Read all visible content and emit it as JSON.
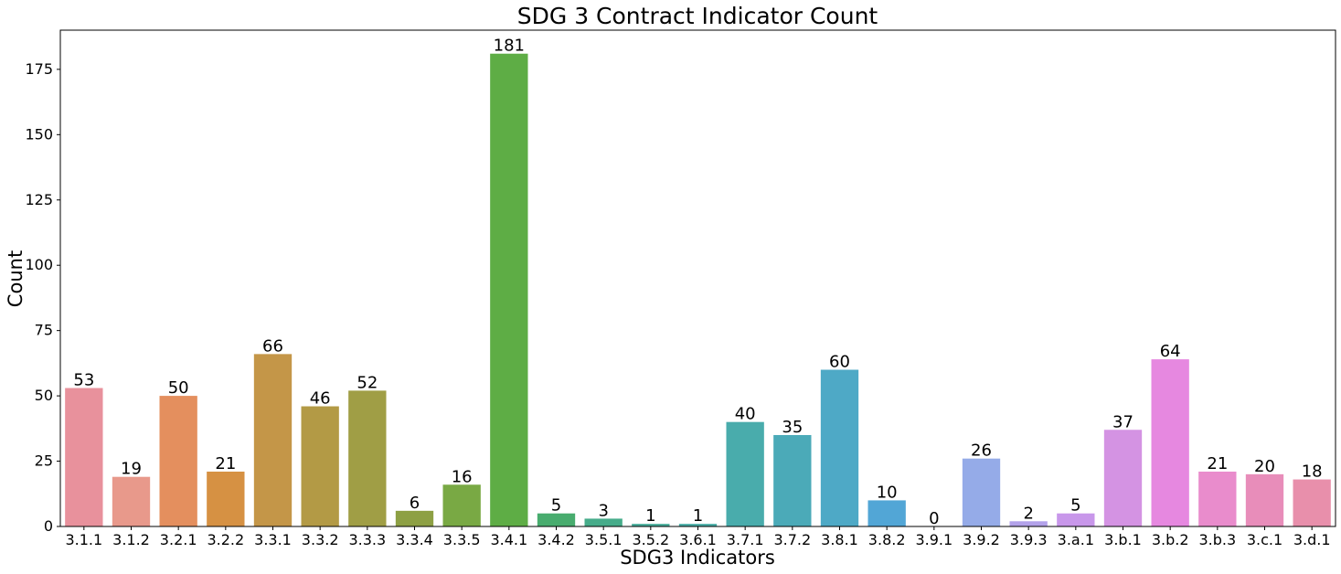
{
  "chart_data": {
    "type": "bar",
    "title": "SDG 3 Contract Indicator Count",
    "xlabel": "SDG3 Indicators",
    "ylabel": "Count",
    "ylim": [
      0,
      190
    ],
    "yticks": [
      0,
      25,
      50,
      75,
      100,
      125,
      150,
      175
    ],
    "grid": false,
    "categories": [
      "3.1.1",
      "3.1.2",
      "3.2.1",
      "3.2.2",
      "3.3.1",
      "3.3.2",
      "3.3.3",
      "3.3.4",
      "3.3.5",
      "3.4.1",
      "3.4.2",
      "3.5.1",
      "3.5.2",
      "3.6.1",
      "3.7.1",
      "3.7.2",
      "3.8.1",
      "3.8.2",
      "3.9.1",
      "3.9.2",
      "3.9.3",
      "3.a.1",
      "3.b.1",
      "3.b.2",
      "3.b.3",
      "3.c.1",
      "3.d.1"
    ],
    "values": [
      53,
      19,
      50,
      21,
      66,
      46,
      52,
      6,
      16,
      181,
      5,
      3,
      1,
      1,
      40,
      35,
      60,
      10,
      0,
      26,
      2,
      5,
      37,
      64,
      21,
      20,
      18
    ],
    "colors": [
      "#e8919c",
      "#e8998b",
      "#e48f5e",
      "#d69143",
      "#c49648",
      "#b39a45",
      "#a09e45",
      "#8da044",
      "#79a944",
      "#5ead45",
      "#48ac6e",
      "#46ac8a",
      "#47ad9a",
      "#48ada6",
      "#49acac",
      "#4baab8",
      "#4ea9c6",
      "#52a6d6",
      "#7ca3e2",
      "#95abe8",
      "#b3a2ea",
      "#c897ea",
      "#d493e3",
      "#e688e0",
      "#e98ccc",
      "#e88dba",
      "#e88fab"
    ]
  }
}
